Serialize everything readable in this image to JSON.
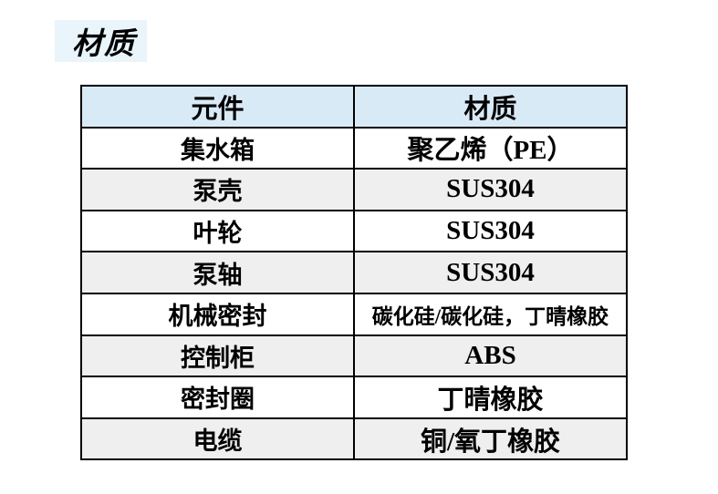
{
  "page": {
    "title": "材质"
  },
  "table": {
    "headers": {
      "component": "元件",
      "material": "材质"
    },
    "rows": [
      {
        "component": "集水箱",
        "material": "聚乙烯（PE）"
      },
      {
        "component": "泵壳",
        "material": "SUS304"
      },
      {
        "component": "叶轮",
        "material": "SUS304"
      },
      {
        "component": "泵轴",
        "material": "SUS304"
      },
      {
        "component": "机械密封",
        "material": "碳化硅/碳化硅，丁晴橡胶"
      },
      {
        "component": "控制柜",
        "material": "ABS"
      },
      {
        "component": "密封圈",
        "material": "丁晴橡胶"
      },
      {
        "component": "电缆",
        "material": "铜/氧丁橡胶"
      }
    ]
  },
  "colors": {
    "header_bg": "#d9eaf7",
    "stripe_bg": "#efefef",
    "row_bg": "#ffffff",
    "border": "#000000",
    "title_highlight": "#e9f4fb"
  }
}
